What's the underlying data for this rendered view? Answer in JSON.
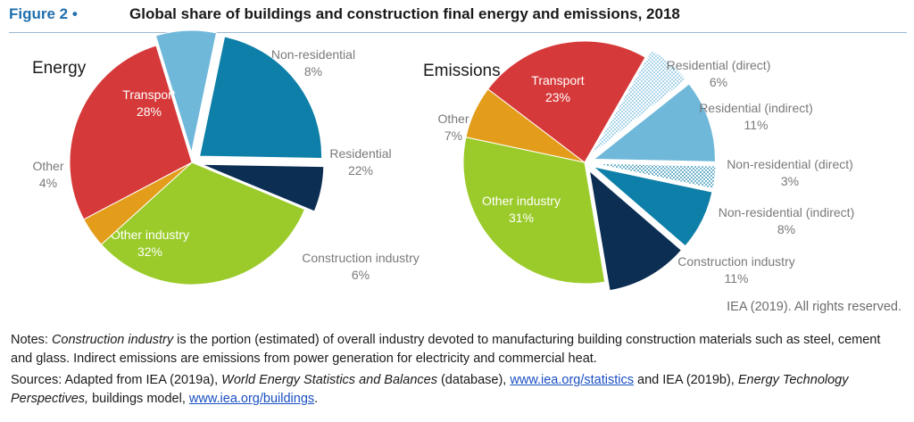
{
  "figure": {
    "label": "Figure 2 •",
    "title": "Global share of buildings and construction final energy and emissions, 2018"
  },
  "chart_data": [
    {
      "type": "pie",
      "title": "Energy",
      "slices": [
        {
          "name": "Non-residential",
          "value": 8,
          "label": "8%",
          "color": "#6fb8da",
          "pattern": "solid",
          "exploded": true
        },
        {
          "name": "Residential",
          "value": 22,
          "label": "22%",
          "color": "#0e7fa8",
          "pattern": "solid",
          "exploded": true
        },
        {
          "name": "Construction industry",
          "value": 6,
          "label": "6%",
          "color": "#0b2e52",
          "pattern": "solid",
          "exploded": true
        },
        {
          "name": "Other industry",
          "value": 32,
          "label": "32%",
          "color": "#9bcb2a",
          "pattern": "solid",
          "exploded": false
        },
        {
          "name": "Other",
          "value": 4,
          "label": "4%",
          "color": "#e39d1b",
          "pattern": "solid",
          "exploded": false
        },
        {
          "name": "Transport",
          "value": 28,
          "label": "28%",
          "color": "#d6393a",
          "pattern": "solid",
          "exploded": false
        }
      ]
    },
    {
      "type": "pie",
      "title": "Emissions",
      "slices": [
        {
          "name": "Residential (direct)",
          "value": 6,
          "label": "6%",
          "color": "#6fb8da",
          "pattern": "dotted",
          "exploded": true
        },
        {
          "name": "Residential (indirect)",
          "value": 11,
          "label": "11%",
          "color": "#6fb8da",
          "pattern": "solid",
          "exploded": true
        },
        {
          "name": "Non-residential (direct)",
          "value": 3,
          "label": "3%",
          "color": "#0e7fa8",
          "pattern": "dotted",
          "exploded": true
        },
        {
          "name": "Non-residential (indirect)",
          "value": 8,
          "label": "8%",
          "color": "#0e7fa8",
          "pattern": "solid",
          "exploded": true
        },
        {
          "name": "Construction industry",
          "value": 11,
          "label": "11%",
          "color": "#0b2e52",
          "pattern": "solid",
          "exploded": true
        },
        {
          "name": "Other industry",
          "value": 31,
          "label": "31%",
          "color": "#9bcb2a",
          "pattern": "solid",
          "exploded": false
        },
        {
          "name": "Other",
          "value": 7,
          "label": "7%",
          "color": "#e39d1b",
          "pattern": "solid",
          "exploded": false
        },
        {
          "name": "Transport",
          "value": 23,
          "label": "23%",
          "color": "#d6393a",
          "pattern": "solid",
          "exploded": false
        }
      ]
    }
  ],
  "credit": "IEA (2019). All rights reserved.",
  "notes": {
    "prefix": "Notes: ",
    "term": "Construction industry",
    "text": " is the portion (estimated) of overall industry devoted to manufacturing building construction materials such as steel, cement and glass. Indirect emissions are emissions from power generation for electricity and commercial heat."
  },
  "sources": {
    "prefix": "Sources: Adapted from IEA (2019a), ",
    "db_title": "World Energy Statistics and Balances",
    "db_suffix": " (database), ",
    "link1": "www.iea.org/statistics",
    "mid": " and IEA (2019b), ",
    "etp_title": "Energy Technology Perspectives,",
    "tail": " buildings model, ",
    "link2": "www.iea.org/buildings",
    "end": "."
  }
}
